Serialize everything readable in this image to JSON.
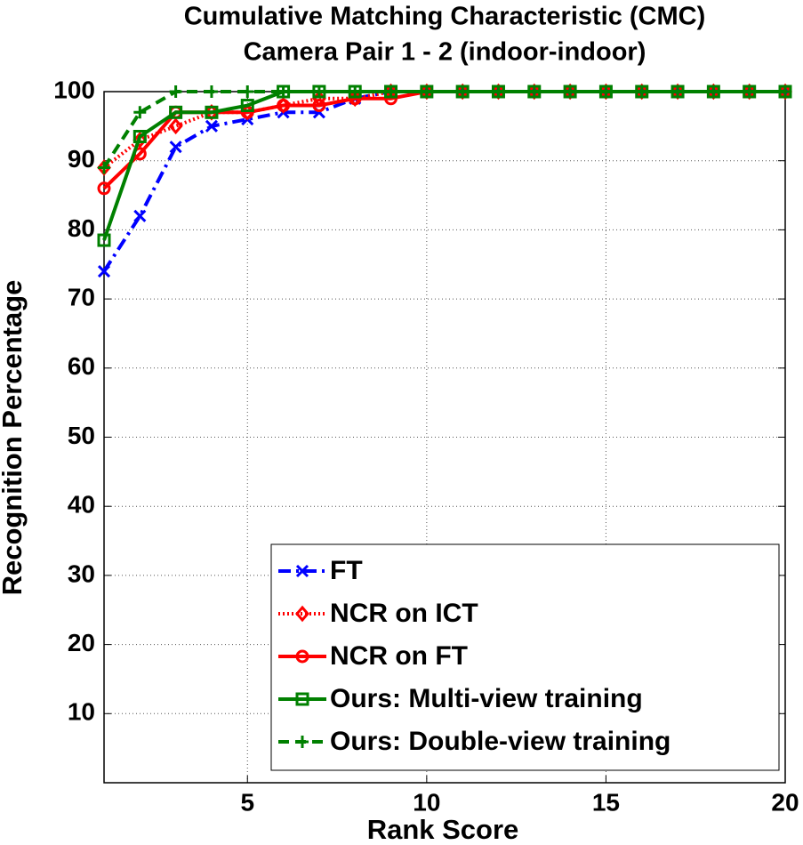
{
  "chart_data": {
    "type": "line",
    "title": "Cumulative Matching Characteristic (CMC)",
    "subtitle": "Camera Pair 1 - 2 (indoor-indoor)",
    "x_label": "Rank Score",
    "y_label": "Recognition Percentage",
    "x": [
      1,
      2,
      3,
      4,
      5,
      6,
      7,
      8,
      9,
      10,
      11,
      12,
      13,
      14,
      15,
      16,
      17,
      18,
      19,
      20
    ],
    "xlim": [
      1,
      20
    ],
    "xticks": [
      5,
      10,
      15,
      20
    ],
    "ylim": [
      0,
      100
    ],
    "yticks": [
      10,
      20,
      30,
      40,
      50,
      60,
      70,
      80,
      90,
      100
    ],
    "grid": true,
    "legend": "lower right",
    "series": [
      {
        "name": "FT",
        "color": "#0000ff",
        "dash": "dashdot",
        "marker": "x",
        "values": [
          74,
          82,
          92,
          95,
          96,
          97,
          97,
          99,
          100,
          100,
          100,
          100,
          100,
          100,
          100,
          100,
          100,
          100,
          100,
          100
        ]
      },
      {
        "name": "NCR on ICT",
        "color": "#ff0000",
        "dash": "dotted",
        "marker": "diamond",
        "values": [
          89,
          93,
          95,
          97,
          97,
          98,
          99,
          99,
          100,
          100,
          100,
          100,
          100,
          100,
          100,
          100,
          100,
          100,
          100,
          100
        ]
      },
      {
        "name": "NCR on FT",
        "color": "#ff0000",
        "dash": "solid",
        "marker": "circle",
        "values": [
          86,
          91,
          97,
          97,
          97,
          98,
          98,
          99,
          99,
          100,
          100,
          100,
          100,
          100,
          100,
          100,
          100,
          100,
          100,
          100
        ]
      },
      {
        "name": "Ours: Multi-view training",
        "color": "#008000",
        "dash": "solid",
        "marker": "square",
        "values": [
          78.5,
          93.5,
          97,
          97,
          98,
          100,
          100,
          100,
          100,
          100,
          100,
          100,
          100,
          100,
          100,
          100,
          100,
          100,
          100,
          100
        ]
      },
      {
        "name": "Ours: Double-view training",
        "color": "#008000",
        "dash": "dashed",
        "marker": "plus",
        "values": [
          89,
          97,
          100,
          100,
          100,
          100,
          100,
          100,
          100,
          100,
          100,
          100,
          100,
          100,
          100,
          100,
          100,
          100,
          100,
          100
        ]
      }
    ]
  }
}
